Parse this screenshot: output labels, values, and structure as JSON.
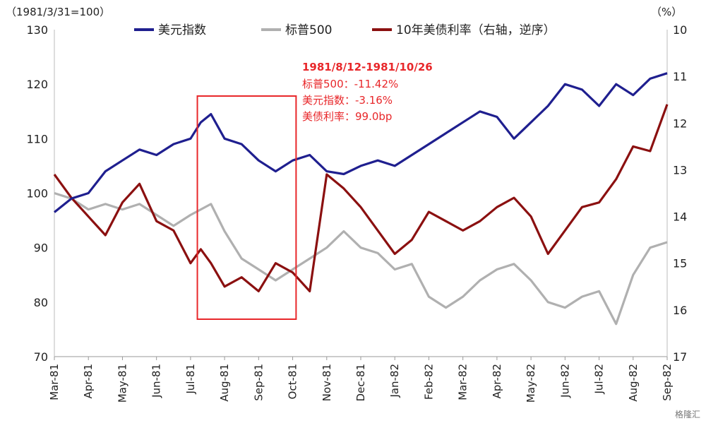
{
  "chart_data": {
    "type": "line",
    "left_axis_label": "（1981/3/31=100）",
    "right_axis_label": "（%）",
    "y_left": {
      "range": [
        70,
        130
      ],
      "ticks": [
        70,
        80,
        90,
        100,
        110,
        120,
        130
      ]
    },
    "y_right": {
      "range": [
        10,
        17
      ],
      "inverted": true,
      "ticks": [
        10,
        11,
        12,
        13,
        14,
        15,
        16,
        17
      ]
    },
    "x_ticks": [
      "Mar-81",
      "Apr-81",
      "May-81",
      "Jun-81",
      "Jul-81",
      "Aug-81",
      "Sep-81",
      "Oct-81",
      "Nov-81",
      "Dec-81",
      "Jan-82",
      "Feb-82",
      "Mar-82",
      "Apr-82",
      "May-82",
      "Jun-82",
      "Jul-82",
      "Aug-82",
      "Sep-82"
    ],
    "legend_position": "top",
    "series": [
      {
        "name": "美元指数",
        "axis": "left",
        "color": "#1f1f8f",
        "x": [
          0,
          0.5,
          1,
          1.5,
          2,
          2.5,
          3,
          3.5,
          4,
          4.3,
          4.6,
          5,
          5.5,
          6,
          6.5,
          7,
          7.5,
          8,
          8.5,
          9,
          9.5,
          10,
          10.5,
          11,
          11.5,
          12,
          12.5,
          13,
          13.5,
          14,
          14.5,
          15,
          15.5,
          16,
          16.5,
          17,
          17.5,
          18
        ],
        "values": [
          96.5,
          99,
          100,
          104,
          106,
          108,
          107,
          109,
          110,
          113,
          114.5,
          110,
          109,
          106,
          104,
          106,
          107,
          104,
          103.5,
          105,
          106,
          105,
          107,
          109,
          111,
          113,
          115,
          114,
          110,
          113,
          116,
          120,
          119,
          116,
          120,
          118,
          121,
          122
        ]
      },
      {
        "name": "标普500",
        "axis": "left",
        "color": "#b0b0b0",
        "x": [
          0,
          0.5,
          1,
          1.5,
          2,
          2.5,
          3,
          3.5,
          4,
          4.3,
          4.6,
          5,
          5.5,
          6,
          6.5,
          7,
          7.5,
          8,
          8.5,
          9,
          9.5,
          10,
          10.5,
          11,
          11.5,
          12,
          12.5,
          13,
          13.5,
          14,
          14.5,
          15,
          15.5,
          16,
          16.5,
          17,
          17.5,
          18
        ],
        "values": [
          100,
          99,
          97,
          98,
          97,
          98,
          96,
          94,
          96,
          97,
          98,
          93,
          88,
          86,
          84,
          86,
          88,
          90,
          93,
          90,
          89,
          86,
          87,
          81,
          79,
          81,
          84,
          86,
          87,
          84,
          80,
          79,
          81,
          82,
          76,
          85,
          90,
          91
        ]
      },
      {
        "name": "10年美债利率（右轴，逆序）",
        "axis": "right",
        "color": "#8b1010",
        "x": [
          0,
          0.5,
          1,
          1.5,
          2,
          2.5,
          3,
          3.5,
          4,
          4.3,
          4.6,
          5,
          5.5,
          6,
          6.5,
          7,
          7.5,
          8,
          8.5,
          9,
          9.5,
          10,
          10.5,
          11,
          11.5,
          12,
          12.5,
          13,
          13.5,
          14,
          14.5,
          15,
          15.5,
          16,
          16.5,
          17,
          17.5,
          18
        ],
        "values": [
          13.1,
          13.6,
          14.0,
          14.4,
          13.7,
          13.3,
          14.1,
          14.3,
          15.0,
          14.7,
          15.0,
          15.5,
          15.3,
          15.6,
          15.0,
          15.2,
          15.6,
          13.1,
          13.4,
          13.8,
          14.3,
          14.8,
          14.5,
          13.9,
          14.1,
          14.3,
          14.1,
          13.8,
          13.6,
          14.0,
          14.8,
          14.3,
          13.8,
          13.7,
          13.2,
          12.5,
          12.6,
          11.6
        ]
      }
    ],
    "annotation": {
      "title": "1981/8/12-1981/10/26",
      "lines": [
        "标普500：-11.42%",
        "美元指数：-3.16%",
        "美债利率：99.0bp"
      ],
      "box_x_range": [
        4.2,
        7.1
      ]
    },
    "watermark": "格隆汇"
  }
}
